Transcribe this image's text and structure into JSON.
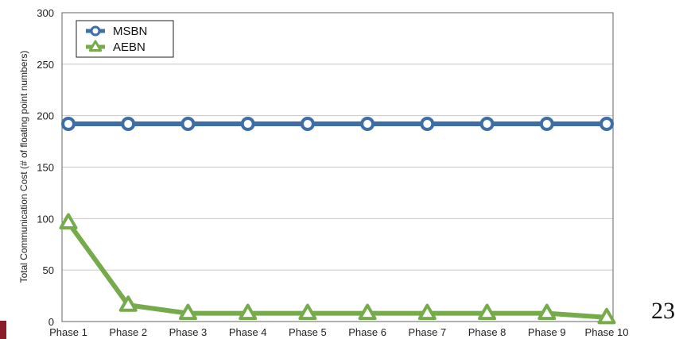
{
  "chart_data": {
    "type": "line",
    "categories": [
      "Phase 1",
      "Phase 2",
      "Phase 3",
      "Phase 4",
      "Phase 5",
      "Phase 6",
      "Phase 7",
      "Phase 8",
      "Phase 9",
      "Phase 10"
    ],
    "series": [
      {
        "name": "MSBN",
        "color": "#3d6ea8",
        "marker": "circle",
        "values": [
          192,
          192,
          192,
          192,
          192,
          192,
          192,
          192,
          192,
          192
        ]
      },
      {
        "name": "AEBN",
        "color": "#76ab4c",
        "marker": "triangle",
        "values": [
          96,
          16,
          8,
          8,
          8,
          8,
          8,
          8,
          8,
          4
        ]
      }
    ],
    "title": "",
    "xlabel": "",
    "ylabel": "Total Communication Cost (# of floating point numbers)",
    "ylim": [
      0,
      300
    ],
    "yticks": [
      0,
      50,
      100,
      150,
      200,
      250,
      300
    ],
    "grid": true,
    "legend_position": "top-left"
  },
  "page_number": "23",
  "accent_color": "#8a1c2b"
}
